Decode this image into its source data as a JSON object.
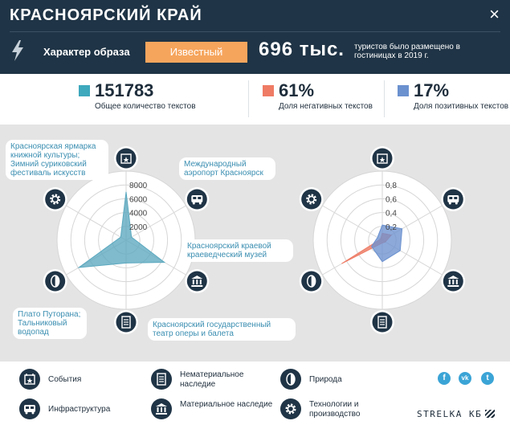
{
  "header": {
    "title": "КРАСНОЯРСКИЙ КРАЙ",
    "close_glyph": "×",
    "char_label": "Характер образа",
    "badge": "Известный",
    "tourists_value": "696 тыс.",
    "tourists_text": "туристов было размещено в гостиницах в 2019 г."
  },
  "stats": [
    {
      "value": "151783",
      "label": "Общее количество текстов",
      "color": "#3ea8bd"
    },
    {
      "value": "61%",
      "label": "Доля негативных текстов",
      "color": "#ef7b64"
    },
    {
      "value": "17%",
      "label": "Доля позитивных текстов",
      "color": "#6b91cf"
    }
  ],
  "left_chart": {
    "tick_labels": [
      "2000",
      "4000",
      "6000",
      "8000"
    ],
    "callouts": {
      "events": "Красноярская ярмарка книжной культуры; Зимний суриковский фестиваль искусств",
      "infra": "Международный аэропорт Красноярск",
      "material": "Красноярский краевой краеведческий музей",
      "intangible": "Красноярский государственный театр оперы и балета",
      "nature": "Плато Путорана; Тальниковый водопад"
    }
  },
  "right_chart": {
    "tick_labels": [
      "0,2",
      "0,4",
      "0,6",
      "0,8"
    ]
  },
  "chart_data": [
    {
      "type": "radar",
      "axes": [
        "События",
        "Инфраструктура",
        "Материальное наследие",
        "Нематериальное наследие",
        "Природа",
        "Технологии и производство"
      ],
      "series": [
        {
          "values": [
            7000,
            900,
            6400,
            3300,
            7900,
            900
          ]
        }
      ],
      "rticks": [
        2000,
        4000,
        6000,
        8000
      ],
      "rmax": 10000,
      "color": "#5ba8bf"
    },
    {
      "type": "radar",
      "axes": [
        "События",
        "Инфраструктура",
        "Материальное наследие",
        "Нематериальное наследие",
        "Природа",
        "Технологии и производство"
      ],
      "series": [
        {
          "values": [
            0.1,
            0.15,
            0.05,
            0.04,
            0.68,
            0.03
          ],
          "color": "#ef7b64"
        },
        {
          "values": [
            0.22,
            0.33,
            0.3,
            0.31,
            0.18,
            0.08
          ],
          "color": "#6b91cf"
        }
      ],
      "rticks": [
        0.2,
        0.4,
        0.6,
        0.8
      ],
      "rmax": 1.0
    }
  ],
  "legend": {
    "items": [
      {
        "label": "События",
        "icon": "calendar-star-icon"
      },
      {
        "label": "Инфраструктура",
        "icon": "bus-icon"
      },
      {
        "label": "Нематериальное наследие",
        "icon": "document-icon"
      },
      {
        "label": "Материальное наследие",
        "icon": "museum-icon"
      },
      {
        "label": "Природа",
        "icon": "leaf-icon"
      },
      {
        "label": "Технологии и производство",
        "icon": "gear-icon"
      }
    ],
    "social": [
      "f",
      "vk",
      "t"
    ],
    "brand": "STRELKA КБ"
  }
}
